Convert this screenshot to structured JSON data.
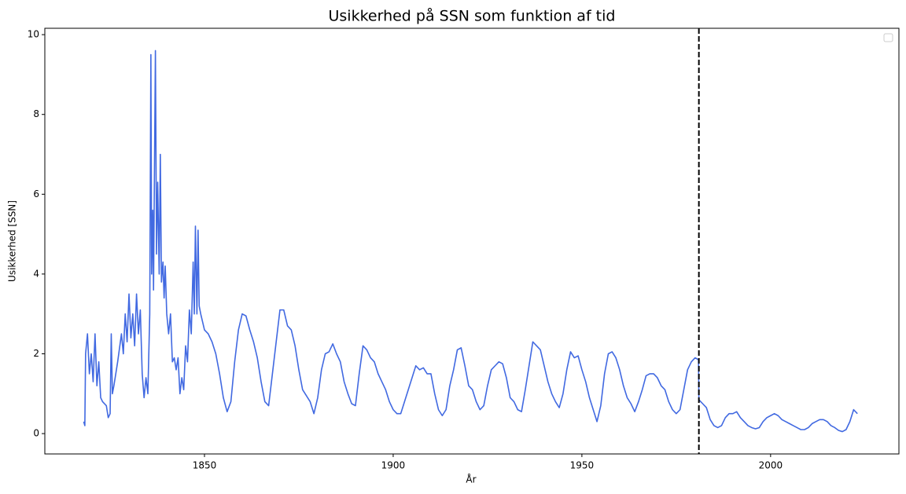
{
  "chart_data": {
    "type": "line",
    "title": "Usikkerhed på SSN som funktion af tid",
    "xlabel": "År",
    "ylabel": "Usikkerhed [SSN]",
    "xlim": [
      1807.7,
      2034.0
    ],
    "ylim": [
      -0.51,
      10.16
    ],
    "xticks": [
      1850,
      1900,
      1950,
      2000
    ],
    "yticks": [
      0,
      2,
      4,
      6,
      8,
      10
    ],
    "vline": 1981,
    "vline_color": "#000000",
    "series": [
      {
        "color": "#4169e1",
        "x": [
          1818,
          1818.3,
          1818.5,
          1819,
          1819.5,
          1820,
          1820.5,
          1821,
          1821.5,
          1822,
          1822.5,
          1823,
          1824,
          1824.5,
          1825,
          1825.3,
          1825.6,
          1826,
          1827,
          1828,
          1828.5,
          1829,
          1829.5,
          1830,
          1830.5,
          1831,
          1831.5,
          1832,
          1832.5,
          1833,
          1833.5,
          1834,
          1834.5,
          1835,
          1835.5,
          1835.8,
          1836,
          1836.3,
          1836.5,
          1837,
          1837.3,
          1837.6,
          1838,
          1838.3,
          1838.6,
          1839,
          1839.3,
          1839.6,
          1840,
          1840.5,
          1841,
          1841.5,
          1842,
          1842.5,
          1843,
          1843.5,
          1844,
          1844.5,
          1845,
          1845.5,
          1846,
          1846.5,
          1847,
          1847.3,
          1847.6,
          1848,
          1848.3,
          1848.6,
          1849,
          1850,
          1851,
          1852,
          1853,
          1854,
          1855,
          1856,
          1857,
          1858,
          1859,
          1860,
          1861,
          1862,
          1863,
          1864,
          1865,
          1866,
          1867,
          1868,
          1869,
          1870,
          1871,
          1872,
          1873,
          1874,
          1875,
          1876,
          1877,
          1878,
          1879,
          1880,
          1881,
          1882,
          1883,
          1884,
          1885,
          1886,
          1887,
          1888,
          1889,
          1890,
          1891,
          1892,
          1893,
          1894,
          1895,
          1896,
          1897,
          1898,
          1899,
          1900,
          1901,
          1902,
          1903,
          1904,
          1905,
          1906,
          1907,
          1908,
          1909,
          1910,
          1911,
          1912,
          1913,
          1914,
          1915,
          1916,
          1917,
          1918,
          1919,
          1920,
          1921,
          1922,
          1923,
          1924,
          1925,
          1926,
          1927,
          1928,
          1929,
          1930,
          1931,
          1932,
          1933,
          1934,
          1935,
          1936,
          1937,
          1938,
          1939,
          1940,
          1941,
          1942,
          1943,
          1944,
          1945,
          1946,
          1947,
          1948,
          1949,
          1950,
          1951,
          1952,
          1953,
          1954,
          1955,
          1956,
          1957,
          1958,
          1959,
          1960,
          1961,
          1962,
          1963,
          1964,
          1965,
          1966,
          1967,
          1968,
          1969,
          1970,
          1971,
          1972,
          1973,
          1974,
          1975,
          1976,
          1977,
          1978,
          1979,
          1980,
          1980.9,
          1981,
          1982,
          1983,
          1984,
          1985,
          1986,
          1987,
          1988,
          1989,
          1990,
          1991,
          1992,
          1993,
          1994,
          1995,
          1996,
          1997,
          1998,
          1999,
          2000,
          2001,
          2002,
          2003,
          2004,
          2005,
          2006,
          2007,
          2008,
          2009,
          2010,
          2011,
          2012,
          2013,
          2014,
          2015,
          2016,
          2017,
          2018,
          2019,
          2020,
          2021,
          2022,
          2023
        ],
        "values": [
          0.3,
          0.2,
          2.0,
          2.5,
          1.5,
          2.0,
          1.3,
          2.5,
          1.2,
          1.8,
          0.9,
          0.8,
          0.7,
          0.4,
          0.5,
          2.5,
          1.0,
          1.2,
          1.8,
          2.5,
          2.0,
          3.0,
          2.3,
          3.5,
          2.4,
          3.0,
          2.2,
          3.5,
          2.5,
          3.1,
          1.5,
          0.9,
          1.4,
          1.0,
          3.0,
          9.5,
          4.0,
          5.6,
          3.6,
          9.6,
          4.5,
          6.3,
          4.0,
          7.0,
          3.8,
          4.3,
          3.4,
          4.2,
          3.0,
          2.5,
          3.0,
          1.8,
          1.9,
          1.6,
          1.9,
          1.0,
          1.4,
          1.1,
          2.2,
          1.8,
          3.1,
          2.5,
          4.3,
          3.0,
          5.2,
          3.0,
          5.1,
          3.2,
          3.0,
          2.6,
          2.5,
          2.3,
          2.0,
          1.5,
          0.9,
          0.55,
          0.8,
          1.8,
          2.6,
          3.0,
          2.95,
          2.6,
          2.3,
          1.9,
          1.3,
          0.8,
          0.7,
          1.5,
          2.3,
          3.1,
          3.1,
          2.7,
          2.6,
          2.2,
          1.6,
          1.1,
          0.95,
          0.8,
          0.5,
          0.9,
          1.6,
          2.0,
          2.05,
          2.25,
          2.0,
          1.8,
          1.3,
          1.0,
          0.75,
          0.7,
          1.5,
          2.2,
          2.1,
          1.9,
          1.8,
          1.5,
          1.3,
          1.1,
          0.8,
          0.6,
          0.5,
          0.5,
          0.8,
          1.1,
          1.4,
          1.7,
          1.6,
          1.65,
          1.5,
          1.5,
          1.0,
          0.6,
          0.45,
          0.6,
          1.2,
          1.6,
          2.1,
          2.15,
          1.7,
          1.2,
          1.1,
          0.8,
          0.6,
          0.7,
          1.2,
          1.6,
          1.7,
          1.8,
          1.75,
          1.4,
          0.9,
          0.8,
          0.6,
          0.55,
          1.1,
          1.7,
          2.3,
          2.2,
          2.1,
          1.7,
          1.3,
          1.0,
          0.8,
          0.65,
          1.0,
          1.6,
          2.05,
          1.9,
          1.95,
          1.6,
          1.3,
          0.9,
          0.6,
          0.3,
          0.7,
          1.5,
          2.0,
          2.05,
          1.9,
          1.6,
          1.2,
          0.9,
          0.75,
          0.55,
          0.8,
          1.1,
          1.45,
          1.5,
          1.5,
          1.4,
          1.2,
          1.1,
          0.8,
          0.6,
          0.5,
          0.6,
          1.1,
          1.6,
          1.8,
          1.9,
          1.85,
          0.85,
          0.75,
          0.65,
          0.35,
          0.2,
          0.15,
          0.2,
          0.4,
          0.5,
          0.5,
          0.55,
          0.4,
          0.3,
          0.2,
          0.15,
          0.12,
          0.15,
          0.3,
          0.4,
          0.45,
          0.5,
          0.45,
          0.35,
          0.3,
          0.25,
          0.2,
          0.15,
          0.1,
          0.1,
          0.15,
          0.25,
          0.3,
          0.35,
          0.35,
          0.3,
          0.2,
          0.15,
          0.08,
          0.05,
          0.1,
          0.3,
          0.6,
          0.5
        ]
      }
    ]
  }
}
